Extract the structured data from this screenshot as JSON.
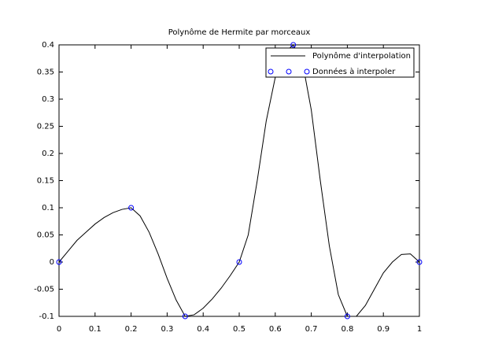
{
  "chart_data": {
    "type": "line",
    "title": "Polynôme de Hermite par morceaux",
    "series": [
      {
        "name": "Polynôme d'interpolation",
        "type": "line",
        "color": "#000000",
        "x": [
          0,
          0.025,
          0.05,
          0.075,
          0.1,
          0.125,
          0.15,
          0.175,
          0.2,
          0.225,
          0.25,
          0.275,
          0.3,
          0.325,
          0.35,
          0.375,
          0.4,
          0.425,
          0.45,
          0.475,
          0.5,
          0.525,
          0.55,
          0.575,
          0.6,
          0.625,
          0.65,
          0.675,
          0.7,
          0.725,
          0.75,
          0.775,
          0.8,
          0.825,
          0.85,
          0.875,
          0.9,
          0.925,
          0.95,
          0.975,
          1
        ],
        "values": [
          0,
          0.02,
          0.04,
          0.055,
          0.07,
          0.082,
          0.091,
          0.097,
          0.1,
          0.085,
          0.055,
          0.015,
          -0.03,
          -0.07,
          -0.1,
          -0.097,
          -0.085,
          -0.068,
          -0.048,
          -0.025,
          0,
          0.05,
          0.15,
          0.26,
          0.34,
          0.385,
          0.4,
          0.37,
          0.28,
          0.15,
          0.03,
          -0.06,
          -0.1,
          -0.1,
          -0.08,
          -0.05,
          -0.02,
          0,
          0.014,
          0.015,
          0
        ]
      },
      {
        "name": "Données à interpoler",
        "type": "scatter",
        "color": "#0000ff",
        "x": [
          0,
          0.2,
          0.35,
          0.5,
          0.65,
          0.8,
          1
        ],
        "values": [
          0,
          0.1,
          -0.1,
          0,
          0.4,
          -0.1,
          0
        ]
      }
    ],
    "xlim": [
      0,
      1
    ],
    "xticks": [
      0,
      0.1,
      0.2,
      0.3,
      0.4,
      0.5,
      0.6,
      0.7,
      0.8,
      0.9,
      1
    ],
    "ylim": [
      -0.1,
      0.4
    ],
    "yticks": [
      -0.1,
      -0.05,
      0,
      0.05,
      0.1,
      0.15,
      0.2,
      0.25,
      0.3,
      0.35,
      0.4
    ],
    "grid": false,
    "legend": "upper right"
  }
}
